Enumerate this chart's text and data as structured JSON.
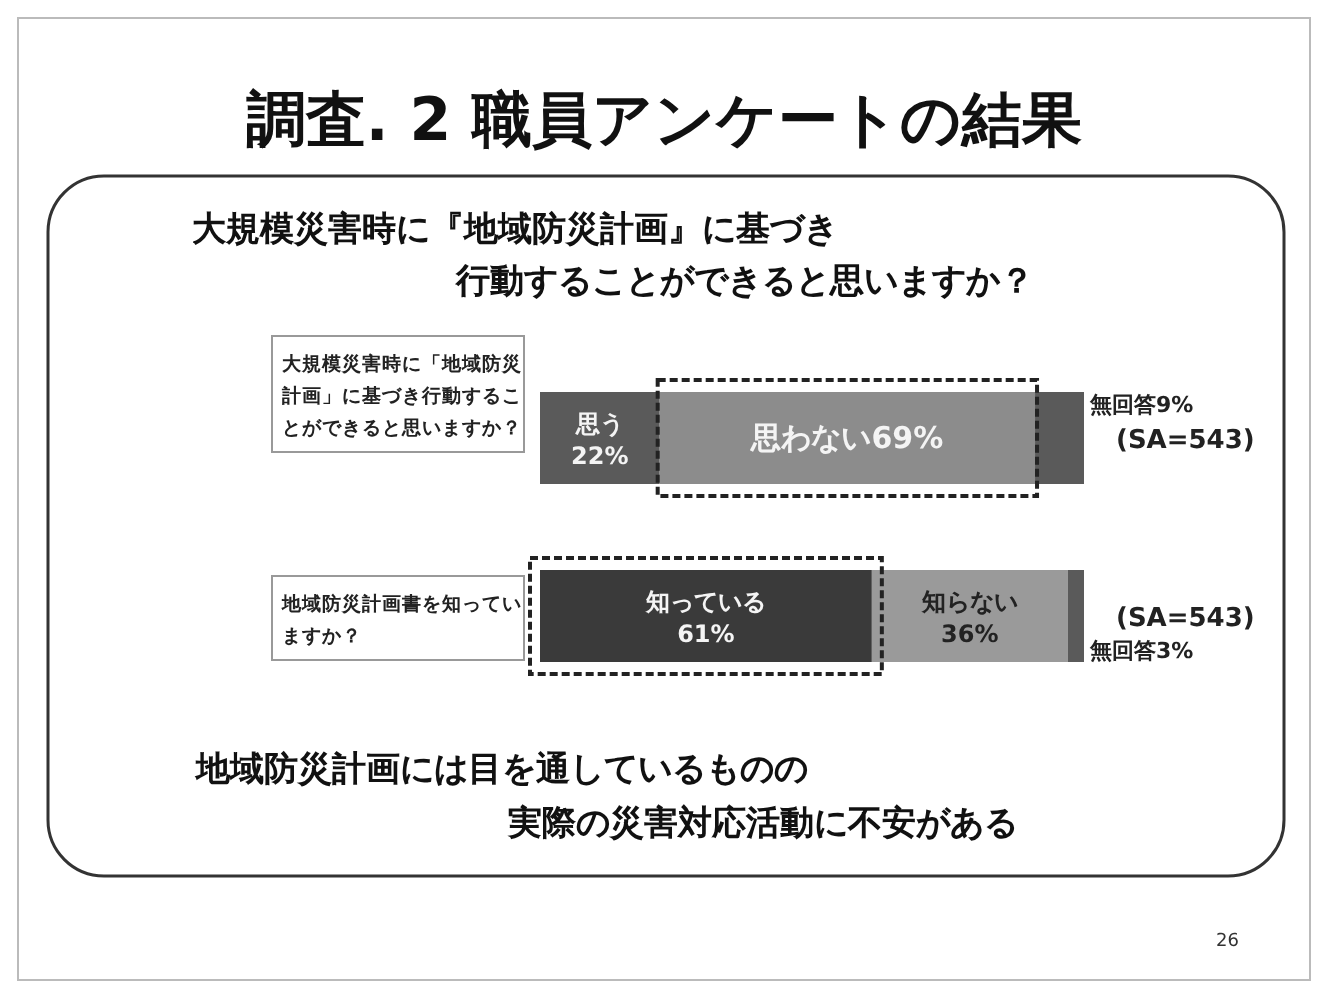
{
  "chart_data": {
    "type": "bar",
    "orientation": "horizontal",
    "stacked": true,
    "title": "調査. 2 職員アンケートの結果",
    "subtitle": "大規模災害時に『地域防災計画』に基づき行動することができると思いますか？",
    "categories": [
      "大規模災害時に「地域防災計画」に基づき行動することができると思いますか？",
      "地域防災計画書を知っていますか？"
    ],
    "series": [
      {
        "colors": [
          "#5a5a5a",
          "#3a3a3a"
        ],
        "values": [
          22,
          61
        ],
        "value_labels": [
          "思う\n22%",
          "知っている\n61%"
        ]
      },
      {
        "colors": [
          "#8c8c8c",
          "#9a9a9a"
        ],
        "values": [
          69,
          36
        ],
        "value_labels": [
          "思わない69%",
          "知らない\n36%"
        ]
      },
      {
        "colors": [
          "#5a5a5a",
          "#5a5a5a"
        ],
        "values": [
          9,
          3
        ],
        "value_labels": [
          "無回答9%",
          "無回答3%"
        ]
      }
    ],
    "annotations": [
      "(SA=543)",
      "(SA=543)",
      "地域防災計画には目を通しているものの実際の災害対応活動に不安がある",
      "26"
    ]
  }
}
